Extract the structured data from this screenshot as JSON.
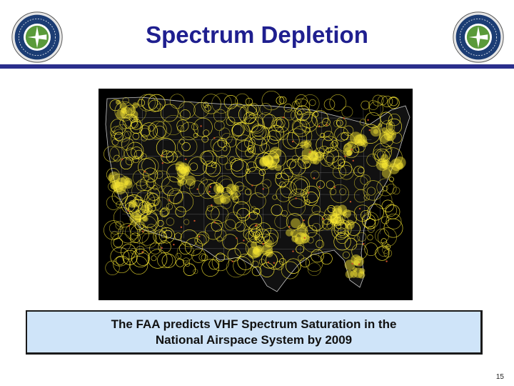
{
  "slide": {
    "title": "Spectrum Depletion",
    "caption_line1": "The FAA predicts VHF Spectrum Saturation in the",
    "caption_line2": "National Airspace System by 2009",
    "page_number": "15"
  },
  "logos": [
    {
      "name": "faa-seal-left",
      "label": "FEDERAL AVIATION ADMINISTRATION"
    },
    {
      "name": "faa-seal-right",
      "label": "FEDERAL AVIATION ADMINISTRATION"
    }
  ],
  "map": {
    "subject": "VHF frequency coverage circles over the contiguous United States",
    "colors": {
      "background": "#000000",
      "coverage": "#ffee33",
      "boundaries": "#c8c8c8",
      "accent": "#c8502a"
    }
  },
  "colors": {
    "title": "#1f1f8f",
    "rule": "#2a2f8c",
    "caption_bg": "#cfe4f9"
  }
}
